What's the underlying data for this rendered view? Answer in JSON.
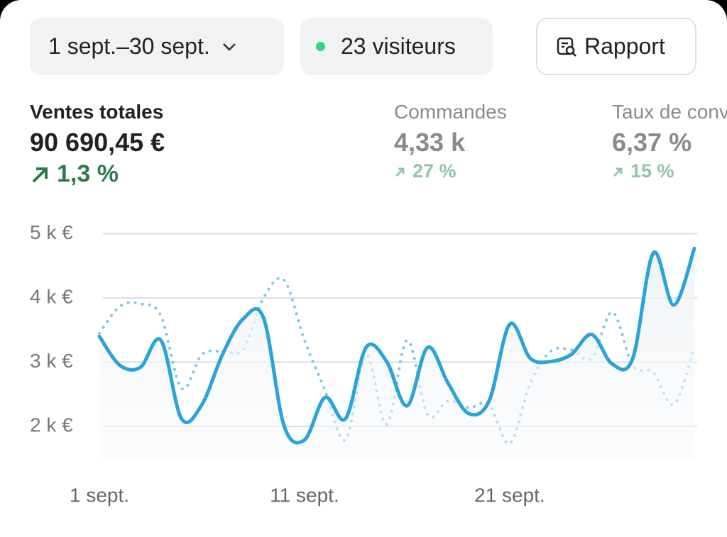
{
  "header": {
    "date_range": "1 sept.–30 sept.",
    "visitors": "23 visiteurs",
    "report": "Rapport"
  },
  "metrics": [
    {
      "label": "Ventes totales",
      "value": "90 690,45 €",
      "change": "1,3 %"
    },
    {
      "label": "Commandes",
      "value": "4,33 k",
      "change": "27 %"
    },
    {
      "label": "Taux de conversion",
      "value": "6,37 %",
      "change": "15 %"
    }
  ],
  "chart_data": {
    "type": "line",
    "x": [
      1,
      2,
      3,
      4,
      5,
      6,
      7,
      8,
      9,
      10,
      11,
      12,
      13,
      14,
      15,
      16,
      17,
      18,
      19,
      20,
      21,
      22,
      23,
      24,
      25,
      26,
      27,
      28,
      29,
      30
    ],
    "xlim": [
      1,
      30
    ],
    "xticks": [
      {
        "value": 1,
        "label": "1 sept."
      },
      {
        "value": 11,
        "label": "11 sept."
      },
      {
        "value": 21,
        "label": "21 sept."
      }
    ],
    "ylim": [
      1500,
      5000
    ],
    "yticks": [
      {
        "value": 2000,
        "label": "2 k €"
      },
      {
        "value": 3000,
        "label": "3 k €"
      },
      {
        "value": 4000,
        "label": "4 k €"
      },
      {
        "value": 5000,
        "label": "5 k €"
      }
    ],
    "grid": true,
    "series": [
      {
        "color": "#29a3da",
        "style": "solid",
        "area": true,
        "values": [
          3400,
          2950,
          2920,
          3340,
          2120,
          2340,
          3120,
          3670,
          3690,
          2010,
          1790,
          2450,
          2120,
          3230,
          3010,
          2320,
          3230,
          2670,
          2200,
          2400,
          3590,
          3060,
          3010,
          3120,
          3430,
          2970,
          3060,
          4700,
          3890,
          4770
        ]
      },
      {
        "color": "#7cc6e3",
        "style": "dotted",
        "area": false,
        "values": [
          3450,
          3870,
          3910,
          3720,
          2590,
          3120,
          3170,
          3200,
          4000,
          4280,
          3340,
          2560,
          1790,
          3120,
          2030,
          3340,
          2180,
          2400,
          2290,
          2340,
          1730,
          2670,
          3170,
          3190,
          3060,
          3780,
          2950,
          2840,
          2340,
          3230
        ]
      }
    ]
  }
}
